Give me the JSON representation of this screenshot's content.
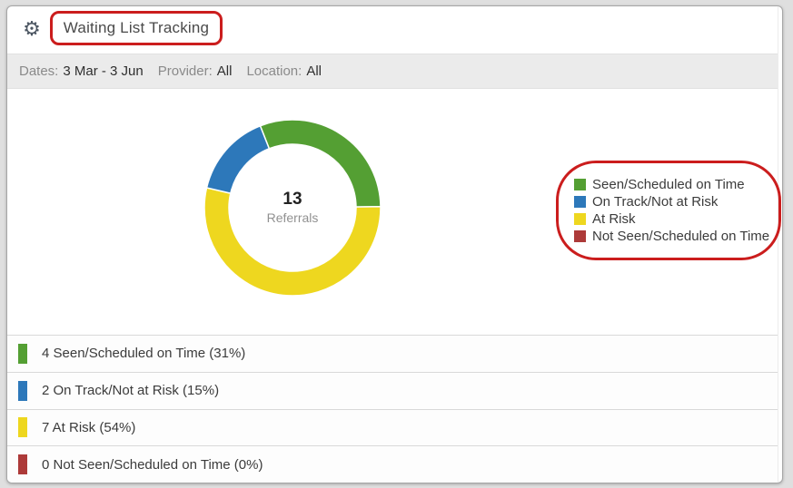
{
  "icons": {
    "gear": "⚙"
  },
  "header": {
    "title": "Waiting List Tracking"
  },
  "filter_bar": {
    "dates_label": "Dates:",
    "dates_value": "3 Mar - 3 Jun",
    "provider_label": "Provider:",
    "provider_value": "All",
    "location_label": "Location:",
    "location_value": "All"
  },
  "summary_rows": [
    "4 Seen/Scheduled on Time (31%)",
    "2 On Track/Not at Risk (15%)",
    "7 At Risk (54%)",
    "0 Not Seen/Scheduled on Time (0%)"
  ],
  "annotation_color": "#cb1d1d",
  "colors": {
    "seen_green": "#549f33",
    "on_track_blue": "#2d78ba",
    "at_risk_yellow": "#eed71f",
    "not_seen_red": "#ad3a39",
    "filter_bar_bg": "#ebebeb",
    "card_border": "#a6a6a6"
  },
  "chart_data": {
    "type": "pie",
    "subtype": "donut",
    "title": "Waiting List Tracking",
    "center_value": 13,
    "center_label": "Referrals",
    "total": 13,
    "slices": [
      {
        "label": "Seen/Scheduled on Time",
        "value": 4,
        "percent": 31,
        "color": "#549f33"
      },
      {
        "label": "On Track/Not at Risk",
        "value": 2,
        "percent": 15,
        "color": "#2d78ba"
      },
      {
        "label": "At Risk",
        "value": 7,
        "percent": 54,
        "color": "#eed71f"
      },
      {
        "label": "Not Seen/Scheduled on Time",
        "value": 0,
        "percent": 0,
        "color": "#ad3a39"
      }
    ],
    "legend_position": "right",
    "start_angle": -21.5,
    "render_order": [
      0,
      2,
      1,
      3
    ]
  }
}
